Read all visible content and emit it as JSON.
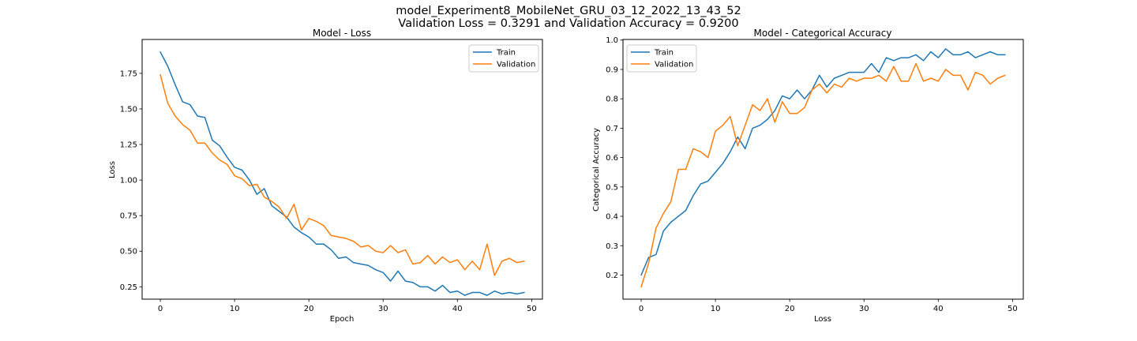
{
  "figure": {
    "suptitle_line1": "model_Experiment8_MobileNet_GRU_03_12_2022_13_43_52",
    "suptitle_line2": "Validation Loss = 0.3291 and Validation Accuracy = 0.9200"
  },
  "colors": {
    "train": "#1f77b4",
    "validation": "#ff7f0e"
  },
  "chart_data": [
    {
      "type": "line",
      "title": "Model - Loss",
      "xlabel": "Epoch",
      "ylabel": "Loss",
      "xlim": [
        -2.45,
        51.45
      ],
      "ylim": [
        0.163,
        1.988
      ],
      "xticks": [
        0,
        10,
        20,
        30,
        40,
        50
      ],
      "yticks": [
        0.25,
        0.5,
        0.75,
        1.0,
        1.25,
        1.5,
        1.75
      ],
      "ytick_labels": [
        "0.25",
        "0.50",
        "0.75",
        "1.00",
        "1.25",
        "1.50",
        "1.75"
      ],
      "legend_loc": "upper right",
      "x": [
        0,
        1,
        2,
        3,
        4,
        5,
        6,
        7,
        8,
        9,
        10,
        11,
        12,
        13,
        14,
        15,
        16,
        17,
        18,
        19,
        20,
        21,
        22,
        23,
        24,
        25,
        26,
        27,
        28,
        29,
        30,
        31,
        32,
        33,
        34,
        35,
        36,
        37,
        38,
        39,
        40,
        41,
        42,
        43,
        44,
        45,
        46,
        47,
        48,
        49
      ],
      "series": [
        {
          "name": "Train",
          "values": [
            1.9,
            1.8,
            1.67,
            1.55,
            1.53,
            1.45,
            1.44,
            1.28,
            1.24,
            1.16,
            1.09,
            1.07,
            1.0,
            0.9,
            0.94,
            0.82,
            0.78,
            0.74,
            0.67,
            0.63,
            0.6,
            0.55,
            0.55,
            0.51,
            0.45,
            0.46,
            0.42,
            0.41,
            0.4,
            0.37,
            0.35,
            0.29,
            0.36,
            0.29,
            0.28,
            0.25,
            0.25,
            0.22,
            0.26,
            0.21,
            0.22,
            0.19,
            0.21,
            0.21,
            0.19,
            0.22,
            0.2,
            0.21,
            0.2,
            0.21
          ]
        },
        {
          "name": "Validation",
          "values": [
            1.74,
            1.54,
            1.45,
            1.39,
            1.35,
            1.26,
            1.26,
            1.19,
            1.14,
            1.11,
            1.03,
            1.01,
            0.96,
            0.97,
            0.88,
            0.85,
            0.81,
            0.73,
            0.83,
            0.65,
            0.73,
            0.71,
            0.68,
            0.61,
            0.6,
            0.59,
            0.57,
            0.53,
            0.54,
            0.5,
            0.49,
            0.54,
            0.49,
            0.51,
            0.41,
            0.42,
            0.47,
            0.41,
            0.46,
            0.42,
            0.44,
            0.37,
            0.43,
            0.37,
            0.55,
            0.33,
            0.43,
            0.45,
            0.42,
            0.43
          ]
        }
      ]
    },
    {
      "type": "line",
      "title": "Model - Categorical Accuracy",
      "xlabel": "Loss",
      "ylabel": "Categorical Accuracy",
      "xlim": [
        -2.45,
        51.45
      ],
      "ylim": [
        0.118,
        1.002
      ],
      "xticks": [
        0,
        10,
        20,
        30,
        40,
        50
      ],
      "yticks": [
        0.2,
        0.3,
        0.4,
        0.5,
        0.6,
        0.7,
        0.8,
        0.9,
        1.0
      ],
      "ytick_labels": [
        "0.2",
        "0.3",
        "0.4",
        "0.5",
        "0.6",
        "0.7",
        "0.8",
        "0.9",
        "1.0"
      ],
      "legend_loc": "upper left",
      "x": [
        0,
        1,
        2,
        3,
        4,
        5,
        6,
        7,
        8,
        9,
        10,
        11,
        12,
        13,
        14,
        15,
        16,
        17,
        18,
        19,
        20,
        21,
        22,
        23,
        24,
        25,
        26,
        27,
        28,
        29,
        30,
        31,
        32,
        33,
        34,
        35,
        36,
        37,
        38,
        39,
        40,
        41,
        42,
        43,
        44,
        45,
        46,
        47,
        48,
        49
      ],
      "series": [
        {
          "name": "Train",
          "values": [
            0.2,
            0.26,
            0.27,
            0.35,
            0.38,
            0.4,
            0.42,
            0.47,
            0.51,
            0.52,
            0.55,
            0.58,
            0.62,
            0.67,
            0.63,
            0.7,
            0.71,
            0.73,
            0.76,
            0.81,
            0.8,
            0.83,
            0.8,
            0.83,
            0.88,
            0.84,
            0.87,
            0.88,
            0.89,
            0.89,
            0.89,
            0.92,
            0.89,
            0.94,
            0.93,
            0.94,
            0.94,
            0.95,
            0.93,
            0.96,
            0.94,
            0.97,
            0.95,
            0.95,
            0.96,
            0.94,
            0.95,
            0.96,
            0.95,
            0.95
          ]
        },
        {
          "name": "Validation",
          "values": [
            0.16,
            0.24,
            0.36,
            0.41,
            0.45,
            0.56,
            0.56,
            0.63,
            0.62,
            0.6,
            0.69,
            0.71,
            0.74,
            0.64,
            0.71,
            0.78,
            0.76,
            0.8,
            0.72,
            0.79,
            0.75,
            0.75,
            0.77,
            0.83,
            0.85,
            0.82,
            0.85,
            0.84,
            0.87,
            0.86,
            0.87,
            0.87,
            0.88,
            0.86,
            0.91,
            0.86,
            0.86,
            0.92,
            0.86,
            0.87,
            0.86,
            0.9,
            0.88,
            0.88,
            0.83,
            0.89,
            0.88,
            0.85,
            0.87,
            0.88
          ]
        }
      ]
    }
  ]
}
